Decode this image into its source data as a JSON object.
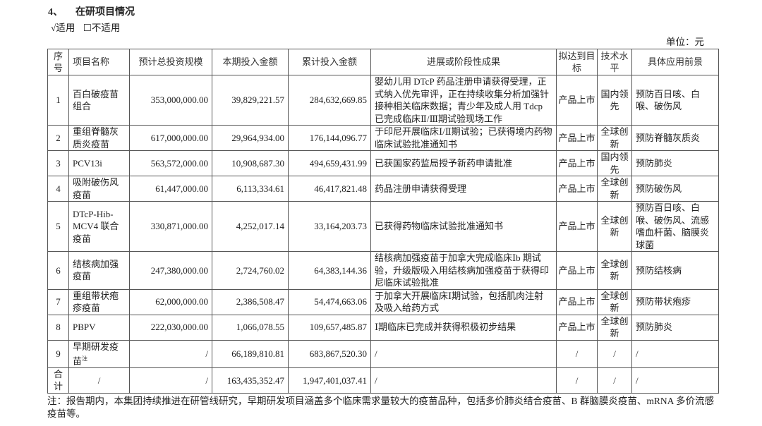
{
  "section": {
    "number": "4、",
    "title": "在研项目情况"
  },
  "applicability": {
    "applicable": "√适用",
    "not_applicable": "☐不适用"
  },
  "unit": "单位：元",
  "table": {
    "headers": [
      "序号",
      "项目名称",
      "预计总投资规模",
      "本期投入金额",
      "累计投入金额",
      "进展或阶段性成果",
      "拟达到目标",
      "技术水平",
      "具体应用前景"
    ],
    "rows": [
      {
        "no": "1",
        "name": "百白破疫苗组合",
        "total": "353,000,000.00",
        "current": "39,829,221.57",
        "cumulative": "284,632,669.85",
        "progress": "婴幼儿用 DTcP 药品注册申请获得受理，正式纳入优先审评，正在持续收集分析加强针接种相关临床数据；青少年及成人用 Tdcp 已完成临床Ⅱ/Ⅲ期试验现场工作",
        "target": "产品上市",
        "level": "国内领先",
        "application": "预防百日咳、白喉、破伤风"
      },
      {
        "no": "2",
        "name": "重组脊髓灰质炎疫苗",
        "total": "617,000,000.00",
        "current": "29,964,934.00",
        "cumulative": "176,144,096.77",
        "progress": "于印尼开展临床Ⅰ/Ⅱ期试验；已获得境内药物临床试验批准通知书",
        "target": "产品上市",
        "level": "全球创新",
        "application": "预防脊髓灰质炎"
      },
      {
        "no": "3",
        "name": "PCV13i",
        "total": "563,572,000.00",
        "current": "10,908,687.30",
        "cumulative": "494,659,431.99",
        "progress": "已获国家药监局授予新药申请批准",
        "target": "产品上市",
        "level": "国内领先",
        "application": "预防肺炎"
      },
      {
        "no": "4",
        "name": "吸附破伤风疫苗",
        "total": "61,447,000.00",
        "current": "6,113,334.61",
        "cumulative": "46,417,821.48",
        "progress": "药品注册申请获得受理",
        "target": "产品上市",
        "level": "全球创新",
        "application": "预防破伤风"
      },
      {
        "no": "5",
        "name": "DTcP-Hib-MCV4 联合疫苗",
        "total": "330,871,000.00",
        "current": "4,252,017.14",
        "cumulative": "33,164,203.73",
        "progress": "已获得药物临床试验批准通知书",
        "target": "产品上市",
        "level": "全球创新",
        "application": "预防百日咳、白喉、破伤风、流感嗜血杆菌、脑膜炎球菌"
      },
      {
        "no": "6",
        "name": "结核病加强疫苗",
        "total": "247,380,000.00",
        "current": "2,724,760.02",
        "cumulative": "64,383,144.36",
        "progress": "结核病加强疫苗于加拿大完成临床Ⅰb 期试验，升级版吸入用结核病加强疫苗于获得印尼临床试验批准",
        "target": "产品上市",
        "level": "全球创新",
        "application": "预防结核病"
      },
      {
        "no": "7",
        "name": "重组带状疱疹疫苗",
        "total": "62,000,000.00",
        "current": "2,386,508.47",
        "cumulative": "54,474,663.06",
        "progress": "于加拿大开展临床Ⅰ期试验，包括肌肉注射及吸入给药方式",
        "target": "产品上市",
        "level": "全球创新",
        "application": "预防带状疱疹"
      },
      {
        "no": "8",
        "name": "PBPV",
        "total": "222,030,000.00",
        "current": "1,066,078.55",
        "cumulative": "109,657,485.87",
        "progress": "Ⅰ期临床已完成并获得积极初步结果",
        "target": "产品上市",
        "level": "全球创新",
        "application": "预防肺炎"
      },
      {
        "no": "9",
        "name": "早期研发疫苗",
        "name_sup": "注",
        "total": "/",
        "current": "66,189,810.81",
        "cumulative": "683,867,520.30",
        "progress": "/",
        "target": "/",
        "level": "/",
        "application": "/"
      },
      {
        "no": "合计",
        "name": "/",
        "total": "/",
        "current": "163,435,352.47",
        "cumulative": "1,947,401,037.41",
        "progress": "/",
        "target": "/",
        "level": "/",
        "application": "/"
      }
    ]
  },
  "note": "注：报告期内，本集团持续推进在研管线研究，早期研发项目涵盖多个临床需求量较大的疫苗品种，包括多价肺炎结合疫苗、B 群脑膜炎疫苗、mRNA 多价流感疫苗等。"
}
